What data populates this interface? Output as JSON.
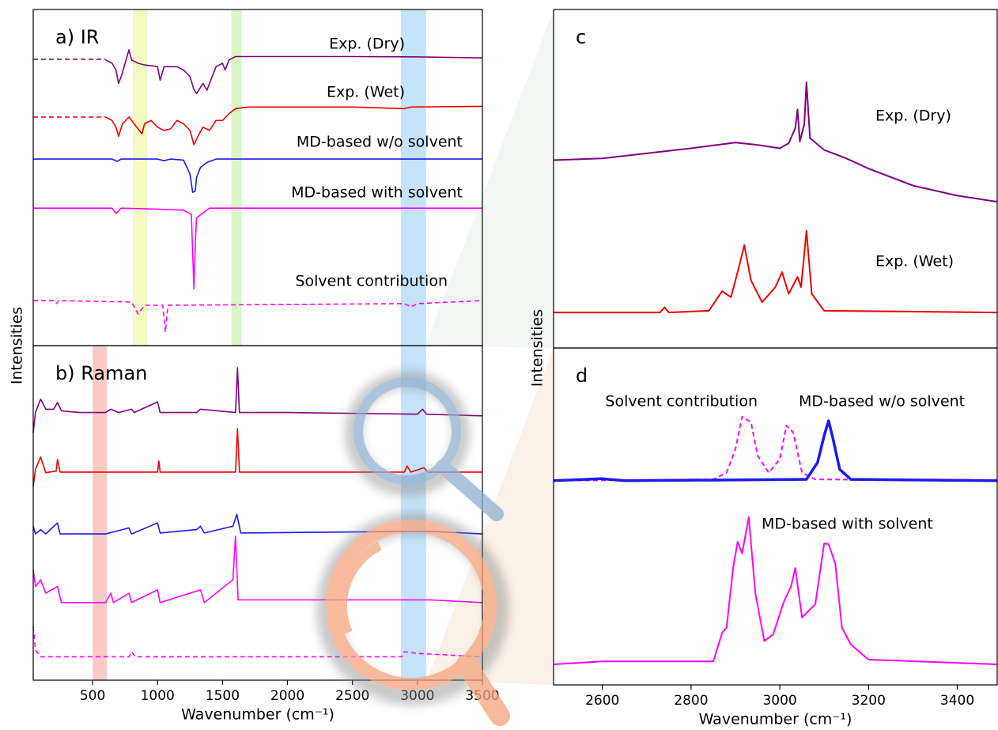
{
  "chart_data": [
    {
      "type": "line",
      "title": "a) IR",
      "ylabel": "Intensities",
      "xlim": [
        43,
        3500
      ],
      "ylim": [
        0,
        100
      ],
      "bands": [
        {
          "range": [
            811,
            921
          ],
          "color": "#eef59a"
        },
        {
          "range": [
            1567,
            1647
          ],
          "color": "#bff0a0"
        },
        {
          "range": [
            2872,
            3067
          ],
          "color": "#9fd0f5"
        }
      ],
      "series": [
        {
          "color": "#800080",
          "linestyle": "dashed",
          "linewidth": 1.6,
          "x": [
            43,
            600
          ],
          "values": [
            85.2,
            85.2
          ]
        },
        {
          "name": "Exp. (Dry)",
          "color": "#800080",
          "linestyle": "solid",
          "linewidth": 1.6,
          "x": [
            600,
            650,
            680,
            700,
            720,
            750,
            780,
            800,
            850,
            900,
            1000,
            1020,
            1050,
            1150,
            1200,
            1250,
            1280,
            1300,
            1350,
            1380,
            1420,
            1450,
            1500,
            1520,
            1550,
            1600,
            1650,
            2000,
            2500,
            3000,
            3500
          ],
          "values": [
            85,
            84,
            82,
            78,
            80,
            84,
            88,
            85,
            84,
            83.5,
            83,
            79,
            83,
            83,
            82,
            80,
            76.2,
            75,
            78,
            76,
            80,
            83,
            84,
            82,
            85,
            86,
            86,
            86,
            86,
            85.9,
            85.6
          ]
        },
        {
          "color": "#ee0000",
          "linestyle": "dashed",
          "linewidth": 1.6,
          "x": [
            43,
            600
          ],
          "values": [
            68,
            68
          ]
        },
        {
          "name": "Exp. (Wet)",
          "color": "#ee0000",
          "linestyle": "solid",
          "linewidth": 1.6,
          "x": [
            600,
            650,
            680,
            700,
            730,
            780,
            820,
            860,
            880,
            900,
            950,
            1000,
            1050,
            1100,
            1150,
            1200,
            1250,
            1280,
            1320,
            1350,
            1400,
            1450,
            1500,
            1550,
            1600,
            1700,
            2500,
            2900,
            2950,
            3500
          ],
          "values": [
            68,
            67,
            65,
            62.3,
            66,
            68,
            66,
            64,
            63,
            66,
            67,
            65,
            64,
            64.5,
            67,
            66,
            64,
            59.8,
            63,
            65,
            64,
            67,
            67,
            69,
            70.5,
            71,
            71,
            70.5,
            71,
            71.2
          ]
        },
        {
          "name": "MD-based w/o solvent",
          "color": "#1a1aee",
          "linestyle": "solid",
          "linewidth": 1.6,
          "x": [
            43,
            650,
            690,
            720,
            1000,
            1050,
            1100,
            1200,
            1250,
            1270,
            1290,
            1300,
            1330,
            1380,
            1450,
            3500
          ],
          "values": [
            55.5,
            55.5,
            54.8,
            55.5,
            55.5,
            55,
            55.5,
            55.2,
            51,
            45.6,
            46,
            50,
            53,
            54.5,
            55.5,
            55.5
          ]
        },
        {
          "name": "MD-based with solvent",
          "color": "#ff00ff",
          "linestyle": "solid",
          "linewidth": 1.6,
          "x": [
            43,
            650,
            680,
            720,
            1000,
            1200,
            1260,
            1280,
            1290,
            1300,
            1350,
            1400,
            3500
          ],
          "values": [
            40.9,
            40.9,
            39.3,
            40.9,
            40.6,
            40.3,
            39,
            16.9,
            30,
            38,
            39.5,
            40.9,
            40.9
          ]
        },
        {
          "name": "Solvent contribution",
          "color": "#ff00ff",
          "linestyle": "dashed",
          "linewidth": 1.6,
          "x": [
            43,
            200,
            220,
            240,
            800,
            850,
            900,
            1040,
            1060,
            1080,
            2900,
            2950,
            3000,
            3500
          ],
          "values": [
            13.4,
            13.4,
            12.5,
            13.4,
            13,
            9.4,
            12,
            12,
            4,
            12,
            12.5,
            11.5,
            12.5,
            13.4
          ]
        }
      ]
    },
    {
      "type": "line",
      "title": "b) Raman",
      "xlabel": "Wavenumber (cm⁻¹)",
      "xlim": [
        43,
        3500
      ],
      "ylim": [
        0,
        100
      ],
      "xticks": [
        500,
        1000,
        1500,
        2000,
        2500,
        3000,
        3500
      ],
      "bands": [
        {
          "range": [
            500,
            610
          ],
          "color": "#f5a8a0"
        },
        {
          "range": [
            2872,
            3067
          ],
          "color": "#9fd0f5"
        }
      ],
      "series": [
        {
          "color": "#800080",
          "linestyle": "solid",
          "linewidth": 1.6,
          "x": [
            43,
            60,
            100,
            140,
            200,
            230,
            260,
            400,
            600,
            640,
            700,
            800,
            820,
            1000,
            1020,
            1300,
            1330,
            1600,
            1615,
            1630,
            2000,
            3000,
            3040,
            3070,
            3500
          ],
          "values": [
            74,
            80,
            84,
            81,
            81,
            83,
            80.5,
            80,
            80,
            81,
            80,
            81,
            80,
            83.2,
            80,
            80,
            81,
            80,
            93.4,
            80,
            80,
            79.5,
            81,
            79.5,
            79
          ]
        },
        {
          "color": "#ee0000",
          "linestyle": "solid",
          "linewidth": 1.6,
          "x": [
            43,
            60,
            100,
            140,
            220,
            230,
            250,
            1000,
            1010,
            1020,
            1600,
            1615,
            1630,
            2900,
            2920,
            2950,
            3050,
            3080,
            3500
          ],
          "values": [
            58,
            63,
            66.7,
            62,
            62.5,
            66,
            62.2,
            62.2,
            65.5,
            62.2,
            62.2,
            75.2,
            62.2,
            62.2,
            64,
            62.2,
            63.5,
            62.2,
            62.2
          ]
        },
        {
          "color": "#1a1aee",
          "linestyle": "solid",
          "linewidth": 1.6,
          "x": [
            43,
            60,
            100,
            140,
            230,
            250,
            600,
            780,
            800,
            1000,
            1020,
            1300,
            1330,
            1360,
            1580,
            1610,
            1640,
            3100,
            3500
          ],
          "values": [
            46,
            43.7,
            45,
            43.7,
            47,
            43.7,
            43.7,
            45.5,
            43.7,
            47,
            44,
            45,
            46,
            44,
            46,
            49.6,
            44,
            44.5,
            43.7
          ]
        },
        {
          "color": "#ff00ff",
          "linestyle": "solid",
          "linewidth": 1.6,
          "x": [
            43,
            60,
            100,
            140,
            230,
            260,
            600,
            640,
            660,
            780,
            800,
            1000,
            1020,
            1330,
            1360,
            1580,
            1600,
            1620,
            2900,
            3100,
            3500
          ],
          "values": [
            33,
            28,
            30,
            26,
            28,
            23.2,
            23.2,
            26,
            23.2,
            26,
            23.2,
            27,
            23.2,
            27,
            23.2,
            30,
            43,
            24,
            24,
            24,
            23.2
          ]
        },
        {
          "color": "#ff00ff",
          "linestyle": "dashed",
          "linewidth": 1.6,
          "x": [
            43,
            60,
            100,
            780,
            800,
            830,
            2880,
            2900,
            3000,
            3500
          ],
          "values": [
            16,
            9,
            7,
            7,
            8.5,
            7,
            7,
            8.5,
            8,
            7
          ]
        }
      ]
    },
    {
      "type": "line",
      "title": "c",
      "ylabel": "Intensities",
      "xlim": [
        2490,
        3490
      ],
      "ylim": [
        0,
        100
      ],
      "series": [
        {
          "name": "Exp. (Dry)",
          "color": "#800080",
          "linestyle": "solid",
          "linewidth": 2,
          "x": [
            2490,
            2600,
            2700,
            2800,
            2900,
            2950,
            3000,
            3020,
            3035,
            3040,
            3045,
            3055,
            3060,
            3068,
            3100,
            3150,
            3200,
            3300,
            3400,
            3490
          ],
          "values": [
            55.5,
            56,
            57.5,
            59,
            60.7,
            60,
            59,
            60.5,
            65,
            70.5,
            61,
            66,
            78.5,
            62,
            58.5,
            56,
            53,
            48,
            45,
            43.2
          ]
        },
        {
          "name": "Exp. (Wet)",
          "color": "#ee0000",
          "linestyle": "solid",
          "linewidth": 2,
          "x": [
            2490,
            2730,
            2740,
            2750,
            2840,
            2870,
            2890,
            2910,
            2920,
            2935,
            2960,
            2990,
            3005,
            3020,
            3040,
            3048,
            3060,
            3072,
            3100,
            3490
          ],
          "values": [
            10.5,
            10.5,
            12,
            10.5,
            11,
            16.8,
            15,
            25,
            30.4,
            20,
            13.5,
            18,
            22.4,
            16,
            21,
            18,
            34.6,
            16,
            11,
            10.5
          ]
        }
      ]
    },
    {
      "type": "line",
      "title": "d",
      "xlabel": "Wavenumber (cm⁻¹)",
      "xlim": [
        2490,
        3490
      ],
      "ylim": [
        0,
        100
      ],
      "xticks": [
        2600,
        2800,
        3000,
        3200,
        3400
      ],
      "series": [
        {
          "name": "Solvent contribution",
          "color": "#ff00ff",
          "linestyle": "dashed",
          "linewidth": 2,
          "x": [
            2490,
            2850,
            2880,
            2900,
            2915,
            2935,
            2950,
            2975,
            3000,
            3015,
            3030,
            3050,
            3080,
            3490
          ],
          "values": [
            60.6,
            61,
            63,
            70,
            79.6,
            78,
            68,
            63,
            67,
            77,
            75,
            63,
            61,
            60.6
          ]
        },
        {
          "name": "MD-based w/o solvent",
          "color": "#1a1aee",
          "linestyle": "solid",
          "linewidth": 3.5,
          "x": [
            2490,
            2600,
            2650,
            3060,
            3085,
            3100,
            3110,
            3120,
            3135,
            3160,
            3490
          ],
          "values": [
            60.6,
            61.2,
            60.6,
            61,
            66,
            74,
            78.4,
            73,
            64,
            61,
            60.6
          ]
        },
        {
          "name": "MD-based with solvent",
          "color": "#ff00ff",
          "linestyle": "solid",
          "linewidth": 2,
          "x": [
            2490,
            2600,
            2850,
            2870,
            2880,
            2895,
            2905,
            2915,
            2930,
            2945,
            2965,
            2985,
            3010,
            3025,
            3035,
            3050,
            3080,
            3100,
            3110,
            3125,
            3140,
            3160,
            3200,
            3490
          ],
          "values": [
            6.1,
            7,
            7,
            15.5,
            17,
            35,
            42.5,
            39,
            49.8,
            27,
            13,
            15,
            25,
            29.1,
            34.7,
            20,
            24,
            42,
            41.8,
            36,
            17,
            12,
            7.5,
            6.1
          ]
        }
      ]
    }
  ]
}
